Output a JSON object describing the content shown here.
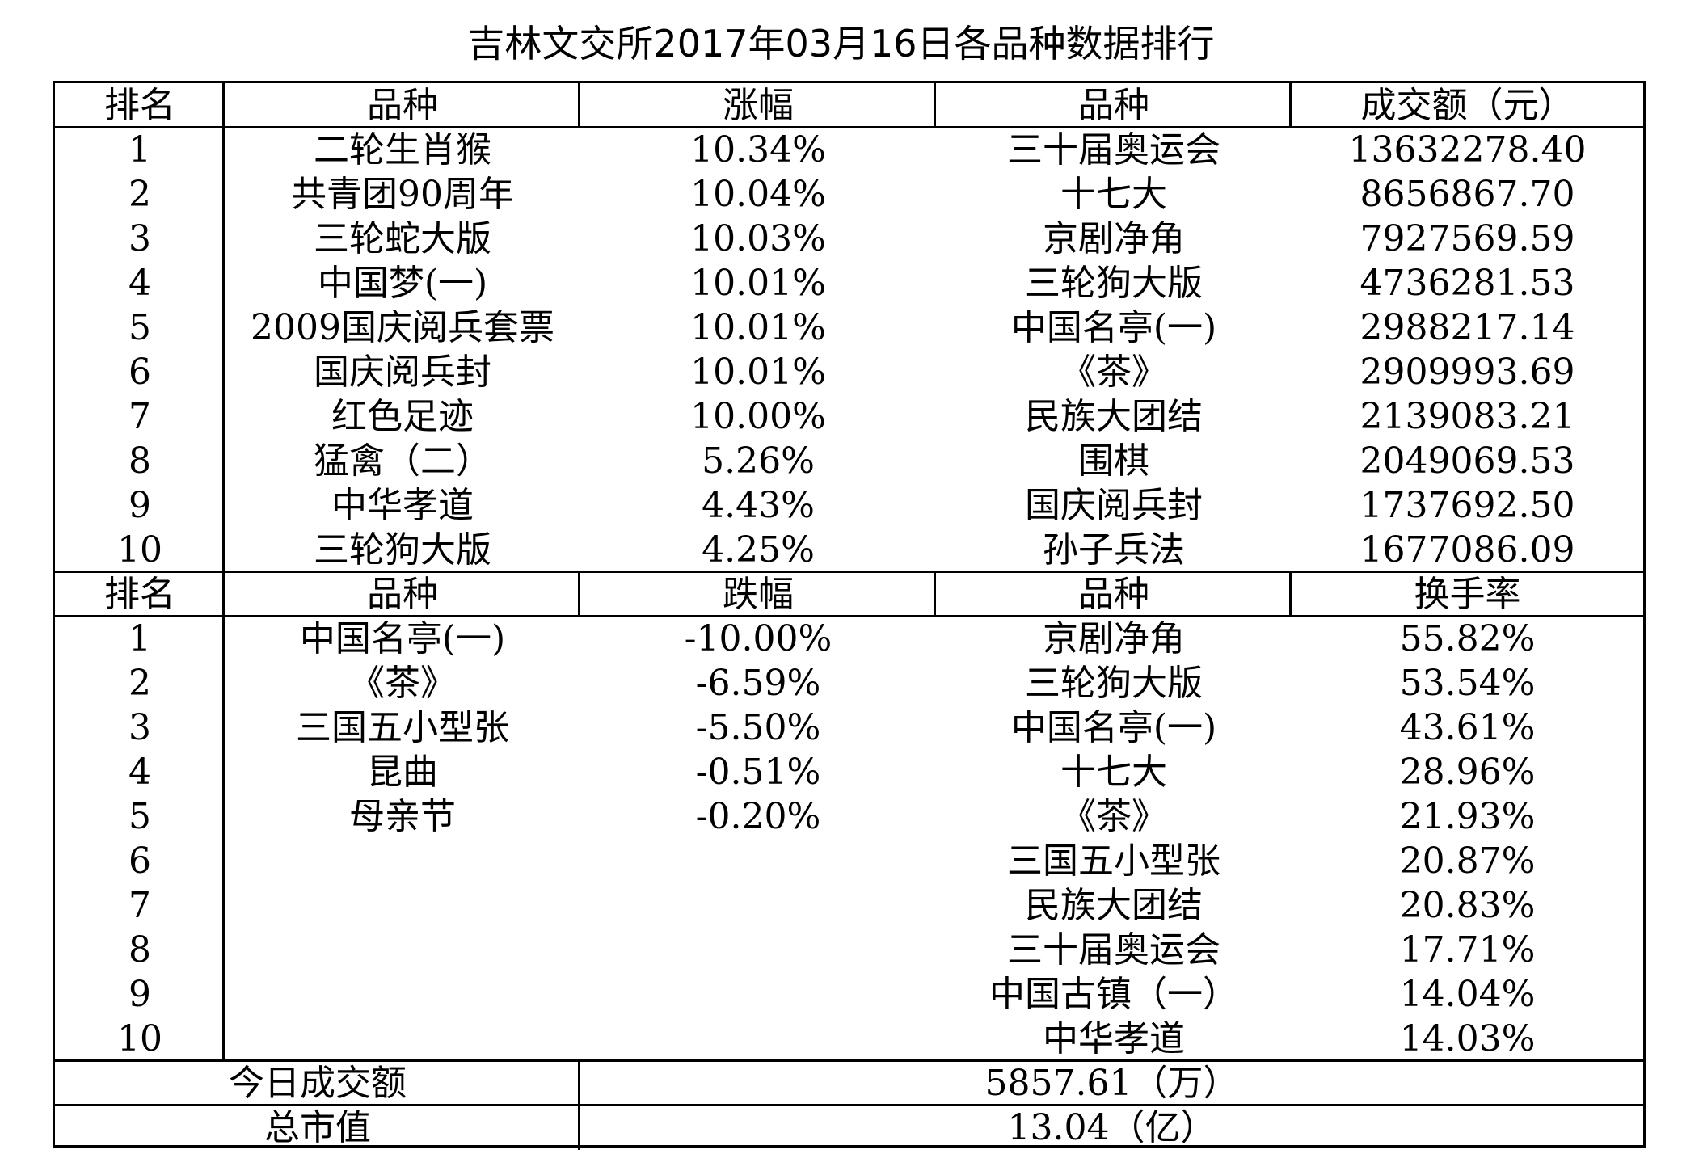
{
  "title": "吉林文交所2017年03月16日各品种数据排行",
  "section1": {
    "headers": [
      "排名",
      "品种",
      "涨幅",
      "品种",
      "成交额（元）"
    ],
    "rows": [
      [
        "1",
        "二轮生肖猴",
        "10.34%",
        "三十届奥运会",
        "13632278.40"
      ],
      [
        "2",
        "共青团90周年",
        "10.04%",
        "十七大",
        "8656867.70"
      ],
      [
        "3",
        "三轮蛇大版",
        "10.03%",
        "京剧净角",
        "7927569.59"
      ],
      [
        "4",
        "中国梦(一)",
        "10.01%",
        "三轮狗大版",
        "4736281.53"
      ],
      [
        "5",
        "2009国庆阅兵套票",
        "10.01%",
        "中国名亭(一)",
        "2988217.14"
      ],
      [
        "6",
        "国庆阅兵封",
        "10.01%",
        "《茶》",
        "2909993.69"
      ],
      [
        "7",
        "红色足迹",
        "10.00%",
        "民族大团结",
        "2139083.21"
      ],
      [
        "8",
        "猛禽（二）",
        "5.26%",
        "围棋",
        "2049069.53"
      ],
      [
        "9",
        "中华孝道",
        "4.43%",
        "国庆阅兵封",
        "1737692.50"
      ],
      [
        "10",
        "三轮狗大版",
        "4.25%",
        "孙子兵法",
        "1677086.09"
      ]
    ]
  },
  "section2": {
    "headers": [
      "排名",
      "品种",
      "跌幅",
      "品种",
      "换手率"
    ],
    "rows": [
      [
        "1",
        "中国名亭(一)",
        "-10.00%",
        "京剧净角",
        "55.82%"
      ],
      [
        "2",
        "《茶》",
        "-6.59%",
        "三轮狗大版",
        "53.54%"
      ],
      [
        "3",
        "三国五小型张",
        "-5.50%",
        "中国名亭(一)",
        "43.61%"
      ],
      [
        "4",
        "昆曲",
        "-0.51%",
        "十七大",
        "28.96%"
      ],
      [
        "5",
        "母亲节",
        "-0.20%",
        "《茶》",
        "21.93%"
      ],
      [
        "6",
        "",
        "",
        "三国五小型张",
        "20.87%"
      ],
      [
        "7",
        "",
        "",
        "民族大团结",
        "20.83%"
      ],
      [
        "8",
        "",
        "",
        "三十届奥运会",
        "17.71%"
      ],
      [
        "9",
        "",
        "",
        "中国古镇（一）",
        "14.04%"
      ],
      [
        "10",
        "",
        "",
        "中华孝道",
        "14.03%"
      ]
    ]
  },
  "summary": [
    {
      "label": "今日成交额",
      "value": "5857.61（万）"
    },
    {
      "label": "总市值",
      "value": "13.04（亿）"
    }
  ]
}
